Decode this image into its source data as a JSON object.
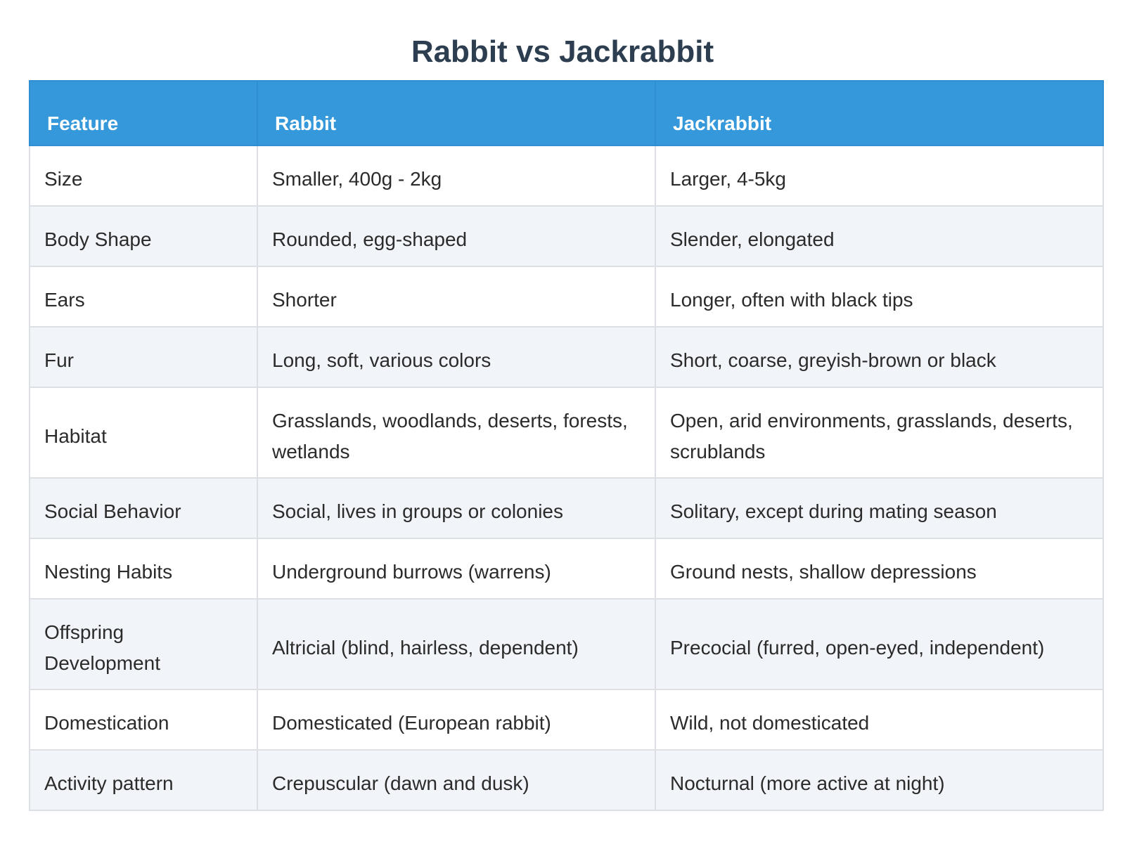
{
  "title": "Rabbit vs Jackrabbit",
  "table": {
    "headers": [
      "Feature",
      "Rabbit",
      "Jackrabbit"
    ],
    "rows": [
      [
        "Size",
        "Smaller, 400g - 2kg",
        "Larger, 4-5kg"
      ],
      [
        "Body Shape",
        "Rounded, egg-shaped",
        "Slender, elongated"
      ],
      [
        "Ears",
        "Shorter",
        "Longer, often with black tips"
      ],
      [
        "Fur",
        "Long, soft, various colors",
        "Short, coarse, greyish-brown or black"
      ],
      [
        "Habitat",
        "Grasslands, woodlands, deserts, forests, wetlands",
        "Open, arid environments, grasslands, deserts, scrublands"
      ],
      [
        "Social Behavior",
        "Social, lives in groups or colonies",
        "Solitary, except during mating season"
      ],
      [
        "Nesting Habits",
        "Underground burrows (warrens)",
        "Ground nests, shallow depressions"
      ],
      [
        "Offspring Development",
        "Altricial (blind, hairless, dependent)",
        "Precocial (furred, open-eyed, independent)"
      ],
      [
        "Domestication",
        "Domesticated (European rabbit)",
        "Wild, not domesticated"
      ],
      [
        "Activity pattern",
        "Crepuscular (dawn and dusk)",
        "Nocturnal (more active at night)"
      ]
    ]
  },
  "colors": {
    "header_bg": "#3498db",
    "title": "#2c3e50",
    "row_alt": "#f1f4f9"
  }
}
